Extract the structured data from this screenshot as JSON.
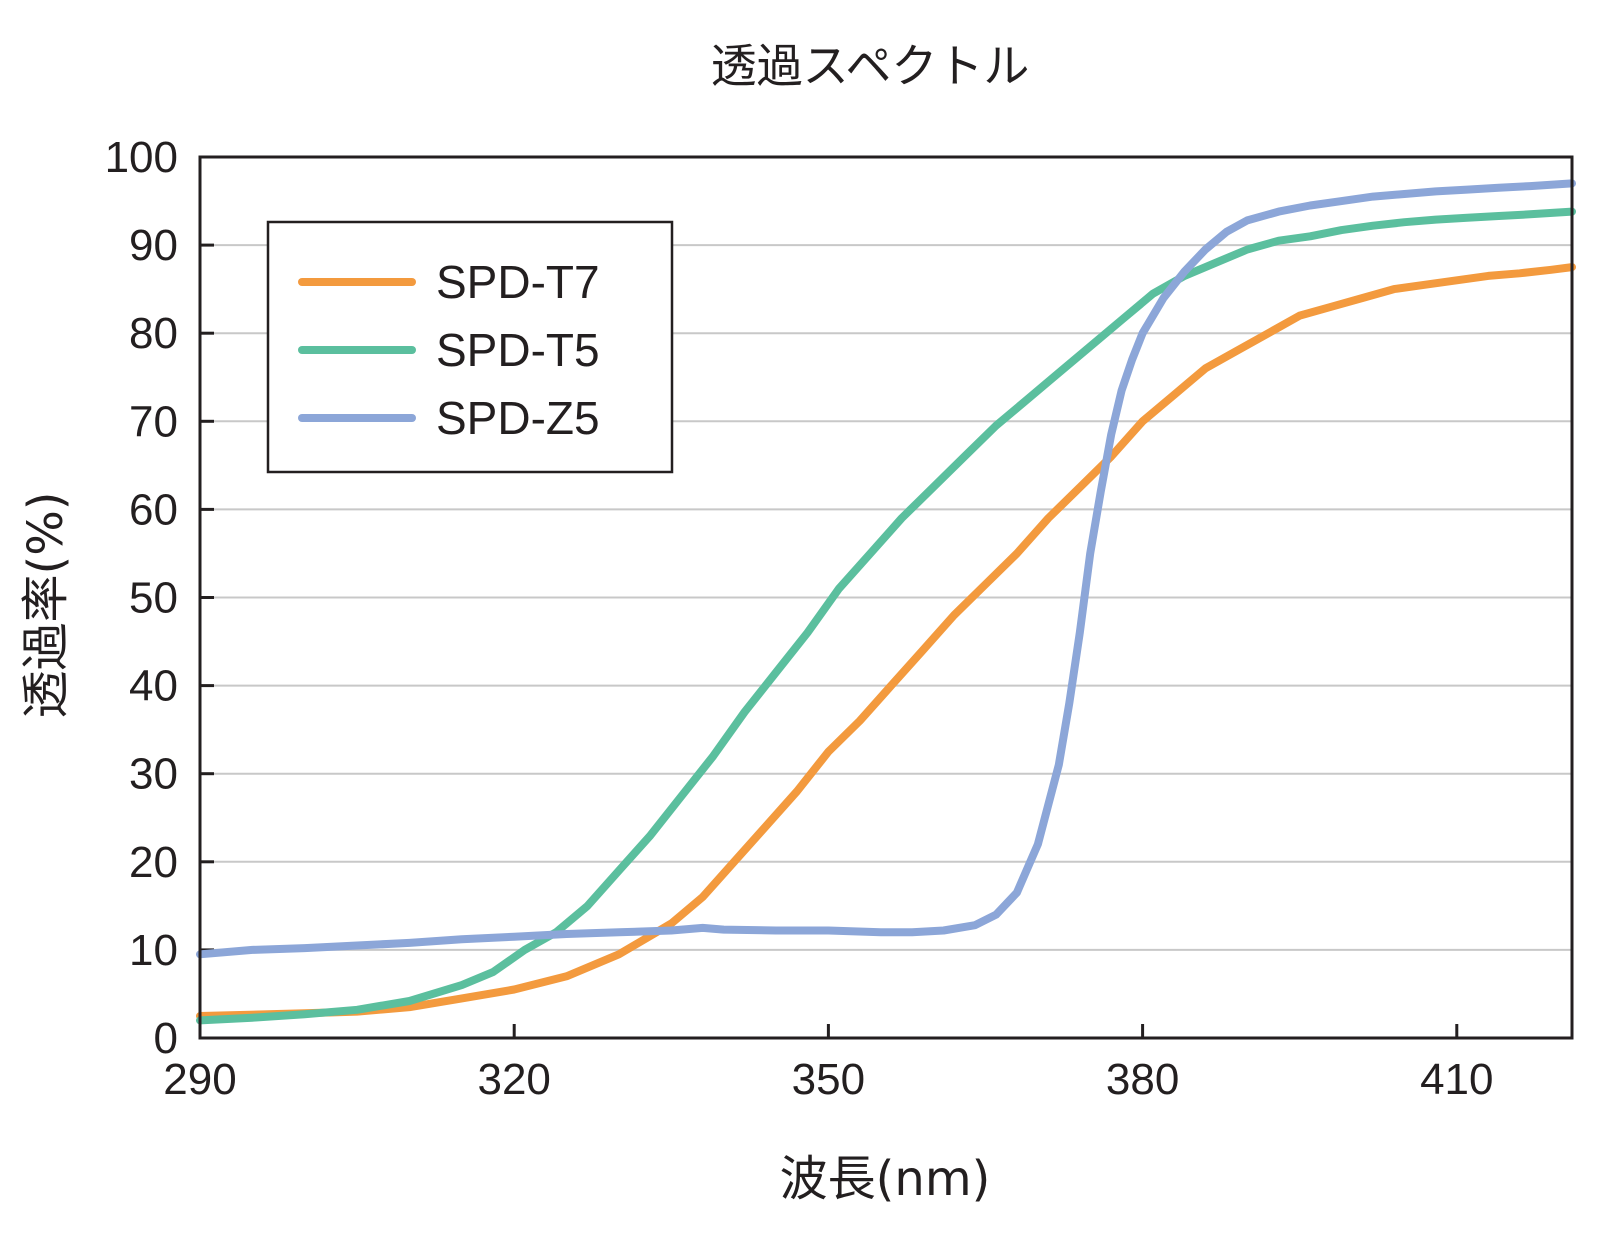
{
  "chart_data": {
    "type": "line",
    "title": "透過スペクトル",
    "xlabel": "波長(nm)",
    "ylabel": "透過率(%)",
    "xlim": [
      290,
      421
    ],
    "ylim": [
      0,
      100
    ],
    "x_ticks": [
      290,
      320,
      350,
      380,
      410
    ],
    "x_tick_labels": [
      "290",
      "320",
      "350",
      "380",
      "410"
    ],
    "y_ticks": [
      0,
      10,
      20,
      30,
      40,
      50,
      60,
      70,
      80,
      90,
      100
    ],
    "y_tick_labels": [
      "0",
      "10",
      "20",
      "30",
      "40",
      "50",
      "60",
      "70",
      "80",
      "90",
      "100"
    ],
    "grid": "horizontal",
    "legend_position": "top-left",
    "series": [
      {
        "name": "SPD-T7",
        "color": "#f39a3e",
        "points": [
          [
            290,
            2.5
          ],
          [
            300,
            2.8
          ],
          [
            305,
            3
          ],
          [
            310,
            3.5
          ],
          [
            315,
            4.5
          ],
          [
            320,
            5.5
          ],
          [
            325,
            7
          ],
          [
            330,
            9.5
          ],
          [
            335,
            13
          ],
          [
            338,
            16
          ],
          [
            341,
            20
          ],
          [
            344,
            24
          ],
          [
            347,
            28
          ],
          [
            350,
            32.5
          ],
          [
            353,
            36
          ],
          [
            356,
            40
          ],
          [
            359,
            44
          ],
          [
            362,
            48
          ],
          [
            365,
            51.5
          ],
          [
            368,
            55
          ],
          [
            371,
            59
          ],
          [
            374,
            62.5
          ],
          [
            377,
            66
          ],
          [
            380,
            70
          ],
          [
            383,
            73
          ],
          [
            386,
            76
          ],
          [
            389,
            78
          ],
          [
            392,
            80
          ],
          [
            395,
            82
          ],
          [
            398,
            83
          ],
          [
            401,
            84
          ],
          [
            404,
            85
          ],
          [
            407,
            85.5
          ],
          [
            410,
            86
          ],
          [
            413,
            86.5
          ],
          [
            416,
            86.8
          ],
          [
            419,
            87.2
          ],
          [
            421,
            87.5
          ]
        ]
      },
      {
        "name": "SPD-T5",
        "color": "#5bbf9e",
        "points": [
          [
            290,
            2
          ],
          [
            295,
            2.3
          ],
          [
            300,
            2.7
          ],
          [
            305,
            3.2
          ],
          [
            310,
            4.2
          ],
          [
            315,
            6
          ],
          [
            318,
            7.5
          ],
          [
            321,
            10
          ],
          [
            324,
            12
          ],
          [
            327,
            15
          ],
          [
            330,
            19
          ],
          [
            333,
            23
          ],
          [
            336,
            27.5
          ],
          [
            339,
            32
          ],
          [
            342,
            37
          ],
          [
            345,
            41.5
          ],
          [
            348,
            46
          ],
          [
            351,
            51
          ],
          [
            354,
            55
          ],
          [
            357,
            59
          ],
          [
            360,
            62.5
          ],
          [
            363,
            66
          ],
          [
            366,
            69.5
          ],
          [
            369,
            72.5
          ],
          [
            372,
            75.5
          ],
          [
            375,
            78.5
          ],
          [
            378,
            81.5
          ],
          [
            381,
            84.5
          ],
          [
            384,
            86.5
          ],
          [
            387,
            88
          ],
          [
            390,
            89.5
          ],
          [
            393,
            90.5
          ],
          [
            396,
            91
          ],
          [
            399,
            91.7
          ],
          [
            402,
            92.2
          ],
          [
            405,
            92.6
          ],
          [
            408,
            92.9
          ],
          [
            411,
            93.1
          ],
          [
            414,
            93.3
          ],
          [
            417,
            93.5
          ],
          [
            421,
            93.8
          ]
        ]
      },
      {
        "name": "SPD-Z5",
        "color": "#8ca6d8",
        "points": [
          [
            290,
            9.5
          ],
          [
            295,
            10
          ],
          [
            300,
            10.2
          ],
          [
            305,
            10.5
          ],
          [
            310,
            10.8
          ],
          [
            315,
            11.2
          ],
          [
            320,
            11.5
          ],
          [
            325,
            11.8
          ],
          [
            330,
            12
          ],
          [
            335,
            12.2
          ],
          [
            338,
            12.5
          ],
          [
            340,
            12.3
          ],
          [
            345,
            12.2
          ],
          [
            350,
            12.2
          ],
          [
            355,
            12
          ],
          [
            358,
            12
          ],
          [
            361,
            12.2
          ],
          [
            364,
            12.8
          ],
          [
            366,
            14
          ],
          [
            368,
            16.5
          ],
          [
            370,
            22
          ],
          [
            372,
            31
          ],
          [
            373,
            38
          ],
          [
            374,
            46
          ],
          [
            375,
            55
          ],
          [
            376,
            62
          ],
          [
            377,
            68.5
          ],
          [
            378,
            73.5
          ],
          [
            379,
            77
          ],
          [
            380,
            80
          ],
          [
            382,
            84
          ],
          [
            384,
            87
          ],
          [
            386,
            89.5
          ],
          [
            388,
            91.5
          ],
          [
            390,
            92.8
          ],
          [
            393,
            93.8
          ],
          [
            396,
            94.5
          ],
          [
            399,
            95
          ],
          [
            402,
            95.5
          ],
          [
            405,
            95.8
          ],
          [
            408,
            96.1
          ],
          [
            411,
            96.3
          ],
          [
            414,
            96.5
          ],
          [
            417,
            96.7
          ],
          [
            421,
            97
          ]
        ]
      }
    ]
  }
}
